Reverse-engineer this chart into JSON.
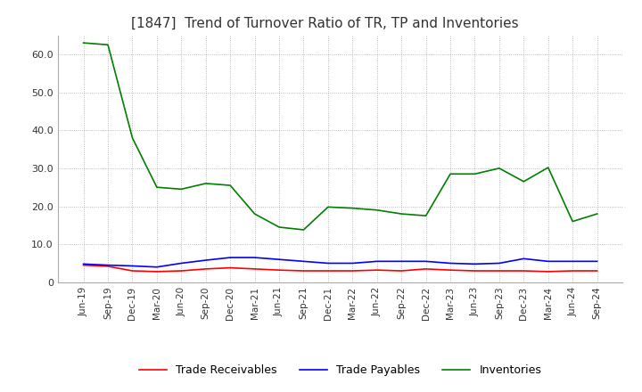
{
  "title": "[1847]  Trend of Turnover Ratio of TR, TP and Inventories",
  "title_fontsize": 11,
  "x_labels": [
    "Jun-19",
    "Sep-19",
    "Dec-19",
    "Mar-20",
    "Jun-20",
    "Sep-20",
    "Dec-20",
    "Mar-21",
    "Jun-21",
    "Sep-21",
    "Dec-21",
    "Mar-22",
    "Jun-22",
    "Sep-22",
    "Dec-22",
    "Mar-23",
    "Jun-23",
    "Sep-23",
    "Dec-23",
    "Mar-24",
    "Jun-24",
    "Sep-24"
  ],
  "trade_receivables": [
    4.5,
    4.2,
    3.0,
    2.8,
    3.0,
    3.5,
    3.8,
    3.5,
    3.2,
    3.0,
    3.0,
    3.0,
    3.2,
    3.0,
    3.5,
    3.2,
    3.0,
    3.0,
    3.0,
    2.8,
    3.0,
    3.0
  ],
  "trade_payables": [
    4.8,
    4.5,
    4.3,
    4.0,
    5.0,
    5.8,
    6.5,
    6.5,
    6.0,
    5.5,
    5.0,
    5.0,
    5.5,
    5.5,
    5.5,
    5.0,
    4.8,
    5.0,
    6.2,
    5.5,
    5.5,
    5.5
  ],
  "inventories": [
    63.0,
    62.5,
    38.0,
    25.0,
    24.5,
    26.0,
    25.5,
    18.0,
    14.5,
    13.8,
    19.8,
    19.5,
    19.0,
    18.0,
    17.5,
    28.5,
    28.5,
    30.0,
    26.5,
    30.2,
    16.0,
    18.0
  ],
  "tr_color": "#ff0000",
  "tp_color": "#0000ff",
  "inv_color": "#008000",
  "ylim": [
    0,
    65
  ],
  "yticks": [
    0,
    10,
    20,
    30,
    40,
    50,
    60
  ],
  "ytick_labels": [
    "0",
    "10.0",
    "20.0",
    "30.0",
    "40.0",
    "50.0",
    "60.0"
  ],
  "grid_color": "#aaaaaa",
  "bg_color": "#ffffff",
  "legend_labels": [
    "Trade Receivables",
    "Trade Payables",
    "Inventories"
  ]
}
